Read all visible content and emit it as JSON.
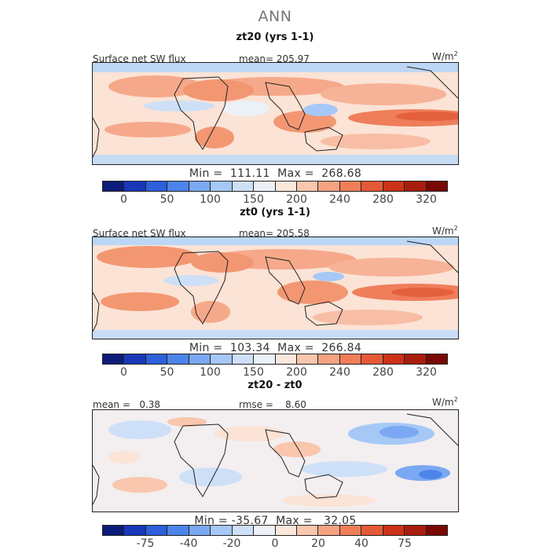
{
  "figure_title": "ANN",
  "unit_base": "W/m",
  "unit_exp": "2",
  "panels": [
    {
      "title": "zt20 (yrs 1-1)",
      "left_label": "Surface net SW flux",
      "mid_label": "mean= 205.97",
      "min_max": "Min =  111.11  Max =  268.68",
      "colorbar_ticks": [
        "0",
        "50",
        "100",
        "150",
        "200",
        "240",
        "280",
        "320"
      ],
      "colorbar_colors": [
        "#0d1c7a",
        "#1838b8",
        "#2e5fdb",
        "#4d84ea",
        "#7aa8f2",
        "#a6c8f6",
        "#cde0f7",
        "#ecf1f8",
        "#fbe7dc",
        "#f9c6ae",
        "#f5a281",
        "#f07e58",
        "#e55a36",
        "#cc3218",
        "#a81d0e",
        "#7a0905"
      ]
    },
    {
      "title": "zt0 (yrs 1-1)",
      "left_label": "Surface net SW flux",
      "mid_label": "mean= 205.58",
      "min_max": "Min =  103.34  Max =  266.84",
      "colorbar_ticks": [
        "0",
        "50",
        "100",
        "150",
        "200",
        "240",
        "280",
        "320"
      ],
      "colorbar_colors": [
        "#0d1c7a",
        "#1838b8",
        "#2e5fdb",
        "#4d84ea",
        "#7aa8f2",
        "#a6c8f6",
        "#cde0f7",
        "#ecf1f8",
        "#fbe7dc",
        "#f9c6ae",
        "#f5a281",
        "#f07e58",
        "#e55a36",
        "#cc3218",
        "#a81d0e",
        "#7a0905"
      ]
    },
    {
      "title": "zt20 - zt0",
      "left_label": "mean =   0.38",
      "mid_label": "rmse =    8.60",
      "min_max": "Min = -35.67  Max =   32.05",
      "colorbar_ticks": [
        "-75",
        "-40",
        "-20",
        "0",
        "20",
        "40",
        "75"
      ],
      "colorbar_colors": [
        "#0d1c7a",
        "#1838b8",
        "#2e5fdb",
        "#4d84ea",
        "#7aa8f2",
        "#a6c8f6",
        "#cde0f7",
        "#ecf1f8",
        "#fbe7dc",
        "#f9c6ae",
        "#f5a281",
        "#f07e58",
        "#e55a36",
        "#cc3218",
        "#a81d0e",
        "#7a0905"
      ]
    }
  ]
}
